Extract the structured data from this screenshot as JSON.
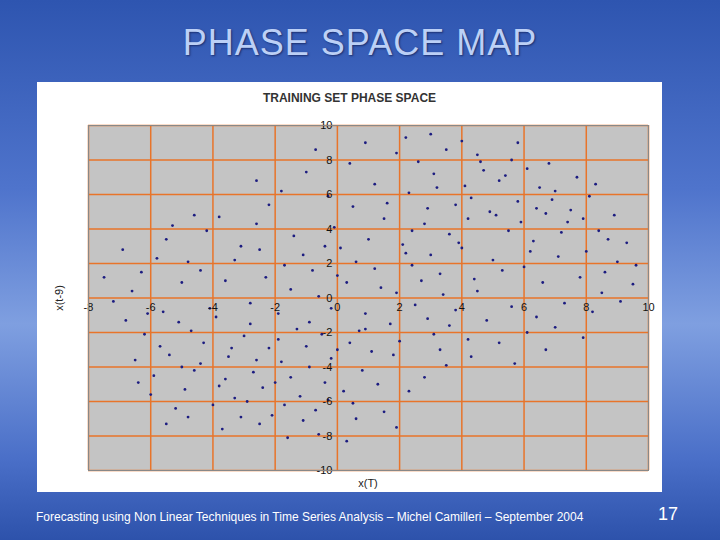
{
  "slide": {
    "title": "PHASE SPACE MAP",
    "footer": "Forecasting using Non Linear Techniques in Time Series Analysis – Michel Camilleri – September 2004",
    "page": 17
  },
  "chart_data": {
    "type": "scatter",
    "title": "TRAINING SET PHASE SPACE",
    "x_label": "x(T)",
    "y_label": "x(t-9)",
    "color": "#1c1c80",
    "grid": true,
    "xlim": [
      -8,
      10
    ],
    "xticks": [
      -8,
      -6,
      -4,
      -2,
      0,
      2,
      4,
      6,
      8,
      10
    ],
    "ylim": [
      -10,
      10
    ],
    "yticks": [
      -10,
      -8,
      -6,
      -4,
      -2,
      0,
      2,
      4,
      6,
      8,
      10
    ],
    "x": [
      2.3,
      3.1,
      4.5,
      5.2,
      6.1,
      7.0,
      8.1,
      8.9,
      3.8,
      4.9,
      5.8,
      6.7,
      7.5,
      8.4,
      9.3,
      2.8,
      3.6,
      4.2,
      5.5,
      6.3,
      7.2,
      8.0,
      9.0,
      2.1,
      3.0,
      4.0,
      5.0,
      6.0,
      7.1,
      8.6,
      2.6,
      3.5,
      4.7,
      5.6,
      6.5,
      7.7,
      8.3,
      4.1,
      5.9,
      6.9,
      3.3,
      4.4,
      5.3,
      6.6,
      7.8,
      9.5,
      2.4,
      3.9,
      5.1,
      6.2,
      7.4,
      8.7,
      4.6,
      5.4,
      3.2,
      6.8,
      7.9,
      2.9,
      4.3,
      6.4,
      -6.2,
      -5.4,
      -4.6,
      -3.8,
      -2.9,
      -2.1,
      -1.2,
      -0.4,
      0.5,
      -5.9,
      -5.1,
      -4.3,
      -3.5,
      -2.7,
      -1.8,
      -1.0,
      -0.2,
      0.8,
      -6.5,
      -4.9,
      -4.0,
      -3.1,
      -2.4,
      -1.5,
      -0.7,
      0.2,
      1.1,
      -5.6,
      -4.7,
      -3.9,
      -3.0,
      -2.2,
      -1.3,
      -0.5,
      0.4,
      -6.8,
      -6.0,
      -5.2,
      -3.6,
      -2.6,
      -1.7,
      -0.9,
      0.0,
      -4.4,
      -3.3,
      -2.0,
      -5.7,
      -4.1,
      -1.1,
      0.6,
      -6.4,
      -5.0,
      -2.8,
      -1.9,
      -0.3,
      1.3,
      -3.4,
      -4.8,
      -2.5,
      0.9,
      -1.5,
      -0.8,
      0.3,
      1.2,
      1.9,
      -0.2,
      0.9,
      1.7,
      2.5,
      3.4,
      -2.3,
      -1.1,
      0.1,
      1.0,
      2.2,
      -2.8,
      -1.9,
      -0.6,
      0.7,
      2.9,
      3.8,
      4.5,
      -0.1,
      1.5,
      0.5,
      -1.4,
      2.0,
      3.1,
      -2.5,
      1.4,
      0.0,
      -0.9,
      2.7,
      3.6,
      4.2,
      1.8,
      -1.7,
      0.6,
      -0.4,
      2.4,
      -6.9,
      -6.3,
      -5.5,
      -4.8,
      -4.2,
      -3.6,
      -3.1,
      -2.6,
      -6.6,
      -5.8,
      -5.0,
      -4.4,
      -3.8,
      -2.2,
      -7.2,
      -6.1,
      -4.6,
      -3.3,
      -7.5,
      -5.3,
      4.8,
      5.6,
      6.4,
      7.3,
      8.2,
      9.1,
      5.2,
      6.1,
      7.0,
      7.9,
      4.3,
      5.7,
      6.7,
      8.5,
      3.5,
      9.6,
      -1.8,
      -1.0,
      -0.3,
      0.4,
      1.2,
      1.9,
      -0.7,
      0.9,
      2.2,
      3.0,
      -2.6,
      1.6,
      4.0,
      5.8,
      -0.6,
      0.3,
      1.5,
      2.3,
      2.8,
      -1.6,
      -3.7,
      1.9,
      3.3,
      -5.5
    ],
    "values": [
      6.1,
      7.2,
      8.3,
      6.8,
      7.5,
      6.2,
      5.9,
      4.8,
      5.4,
      5.0,
      5.6,
      4.9,
      5.1,
      3.9,
      3.2,
      4.3,
      3.7,
      4.6,
      3.9,
      3.3,
      3.8,
      2.7,
      2.1,
      3.1,
      2.5,
      2.9,
      2.2,
      1.8,
      2.4,
      1.5,
      7.9,
      8.6,
      7.4,
      8.0,
      6.4,
      7.0,
      6.6,
      6.5,
      4.4,
      5.7,
      1.4,
      1.1,
      1.6,
      0.9,
      1.2,
      0.8,
      1.9,
      3.2,
      4.8,
      2.7,
      4.4,
      3.4,
      7.9,
      7.1,
      6.4,
      7.8,
      4.6,
      5.2,
      5.8,
      5.2,
      -2.1,
      -3.3,
      -4.2,
      -5.1,
      -6.0,
      -6.8,
      -5.7,
      -4.9,
      -6.1,
      -4.5,
      -1.4,
      -2.6,
      -3.4,
      -4.3,
      -3.7,
      -2.8,
      -3.5,
      -4.2,
      -3.6,
      -5.3,
      -6.2,
      -6.9,
      -5.2,
      -4.6,
      -6.5,
      -5.4,
      -3.1,
      -0.8,
      -1.9,
      -1.1,
      -2.2,
      -2.9,
      -1.8,
      -2.1,
      -2.6,
      -1.3,
      -5.6,
      -6.4,
      -4.7,
      -3.6,
      -6.2,
      -4.0,
      -3.0,
      -3.8,
      -5.8,
      -4.9,
      -2.8,
      -0.6,
      -7.1,
      -7.0,
      -4.9,
      -4.0,
      -1.5,
      -2.4,
      -5.9,
      -5.0,
      -2.9,
      -6.9,
      -7.3,
      -1.8,
      0.5,
      1.6,
      0.9,
      1.7,
      0.3,
      -0.6,
      -0.9,
      -1.5,
      -0.4,
      0.2,
      1.2,
      2.5,
      2.9,
      3.4,
      2.6,
      -0.3,
      -0.9,
      0.1,
      -1.9,
      -1.2,
      -0.7,
      0.4,
      4.1,
      4.6,
      5.3,
      3.6,
      -2.5,
      -2.1,
      2.8,
      0.6,
      1.3,
      -1.4,
      1.0,
      -1.6,
      -2.4,
      -3.3,
      1.9,
      2.1,
      3.0,
      3.9,
      2.8,
      1.5,
      3.4,
      2.1,
      3.9,
      1.0,
      3.0,
      4.3,
      0.4,
      2.3,
      0.9,
      1.6,
      4.7,
      5.4,
      -0.2,
      -0.9,
      4.8,
      2.2,
      1.2,
      4.2,
      -1.3,
      -0.5,
      -1.1,
      -0.3,
      -0.8,
      -0.2,
      -2.6,
      -2.0,
      -1.7,
      -2.3,
      -3.4,
      -3.8,
      -3.0,
      0.3,
      -3.9,
      1.9,
      6.2,
      7.3,
      5.9,
      7.8,
      6.6,
      8.4,
      8.6,
      9.0,
      9.3,
      9.5,
      6.8,
      5.5,
      9.1,
      9.0,
      -7.9,
      -8.3,
      -6.6,
      -5.4,
      -4.6,
      -8.1,
      -7.6,
      -7.5,
      -3.0,
      -7.3
    ]
  }
}
